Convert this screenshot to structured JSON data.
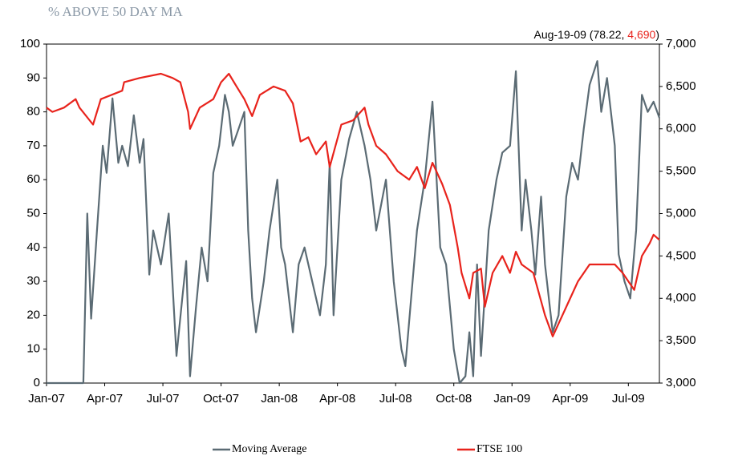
{
  "chart_data": {
    "type": "line",
    "title": "% ABOVE 50 DAY MA",
    "annotation": {
      "prefix": "Aug-19-09 (78.22, ",
      "highlight": "4,690",
      "suffix": ")"
    },
    "xlim": [
      0,
      31.6
    ],
    "xticks": [
      {
        "value": 0,
        "label": "Jan-07"
      },
      {
        "value": 3,
        "label": "Apr-07"
      },
      {
        "value": 6,
        "label": "Jul-07"
      },
      {
        "value": 9,
        "label": "Oct-07"
      },
      {
        "value": 12,
        "label": "Jan-08"
      },
      {
        "value": 15,
        "label": "Apr-08"
      },
      {
        "value": 18,
        "label": "Jul-08"
      },
      {
        "value": 21,
        "label": "Oct-08"
      },
      {
        "value": 24,
        "label": "Jan-09"
      },
      {
        "value": 27,
        "label": "Apr-09"
      },
      {
        "value": 30,
        "label": "Jul-09"
      }
    ],
    "ylim": [
      0,
      100
    ],
    "yticks": [
      0,
      10,
      20,
      30,
      40,
      50,
      60,
      70,
      80,
      90,
      100
    ],
    "y2lim": [
      3000,
      7000
    ],
    "y2ticks": [
      {
        "value": 3000,
        "label": "3,000"
      },
      {
        "value": 3500,
        "label": "3,500"
      },
      {
        "value": 4000,
        "label": "4,000"
      },
      {
        "value": 4500,
        "label": "4,500"
      },
      {
        "value": 5000,
        "label": "5,000"
      },
      {
        "value": 5500,
        "label": "5,500"
      },
      {
        "value": 6000,
        "label": "6,000"
      },
      {
        "value": 6500,
        "label": "6,500"
      },
      {
        "value": 7000,
        "label": "7,000"
      }
    ],
    "series": [
      {
        "name": "Moving Average",
        "color": "#5b6b74",
        "axis": "y",
        "x": [
          0,
          1.9,
          2.1,
          2.3,
          2.6,
          2.9,
          3.1,
          3.4,
          3.7,
          3.9,
          4.2,
          4.5,
          4.8,
          5.0,
          5.3,
          5.5,
          5.9,
          6.3,
          6.7,
          7.0,
          7.2,
          7.4,
          7.7,
          8.0,
          8.3,
          8.6,
          8.9,
          9.2,
          9.4,
          9.6,
          9.9,
          10.2,
          10.4,
          10.6,
          10.8,
          11.2,
          11.5,
          11.9,
          12.1,
          12.3,
          12.7,
          13.0,
          13.3,
          13.7,
          14.1,
          14.4,
          14.6,
          14.8,
          15.2,
          15.6,
          16.0,
          16.4,
          16.7,
          17.0,
          17.5,
          17.9,
          18.3,
          18.5,
          18.8,
          19.1,
          19.5,
          19.9,
          20.3,
          20.6,
          21.0,
          21.3,
          21.6,
          21.8,
          22.0,
          22.2,
          22.4,
          22.8,
          23.2,
          23.5,
          23.9,
          24.2,
          24.5,
          24.7,
          25.0,
          25.2,
          25.5,
          25.7,
          26.1,
          26.4,
          26.8,
          27.1,
          27.4,
          27.7,
          28.0,
          28.4,
          28.6,
          28.9,
          29.3,
          29.5,
          29.8,
          30.1,
          30.4,
          30.7,
          31.0,
          31.3,
          31.6
        ],
        "values": [
          0,
          0,
          50,
          19,
          45,
          70,
          62,
          84,
          65,
          70,
          64,
          79,
          65,
          72,
          32,
          45,
          35,
          50,
          8,
          25,
          36,
          2,
          22,
          40,
          30,
          62,
          70,
          85,
          80,
          70,
          75,
          80,
          45,
          25,
          15,
          30,
          45,
          60,
          40,
          35,
          15,
          35,
          40,
          30,
          20,
          35,
          65,
          20,
          60,
          72,
          80,
          70,
          60,
          45,
          60,
          30,
          10,
          5,
          25,
          45,
          60,
          83,
          40,
          35,
          10,
          0,
          2,
          15,
          2,
          35,
          8,
          45,
          60,
          68,
          70,
          92,
          45,
          60,
          45,
          32,
          55,
          35,
          15,
          20,
          55,
          65,
          60,
          75,
          88,
          95,
          80,
          90,
          70,
          38,
          30,
          25,
          45,
          85,
          80,
          83,
          78.22
        ]
      },
      {
        "name": "FTSE 100",
        "color": "#e8231c",
        "axis": "y2",
        "x": [
          0,
          0.3,
          0.9,
          1.5,
          1.7,
          2.4,
          2.8,
          3.9,
          4.0,
          4.8,
          5.9,
          6.5,
          6.9,
          7.3,
          7.4,
          7.9,
          8.6,
          9.0,
          9.4,
          9.8,
          10.2,
          10.6,
          11.0,
          11.7,
          12.3,
          12.7,
          13.1,
          13.5,
          13.9,
          14.4,
          14.6,
          15.2,
          15.8,
          16.4,
          16.6,
          17.0,
          17.5,
          18.1,
          18.7,
          19.1,
          19.5,
          19.9,
          20.4,
          20.8,
          21.2,
          21.4,
          21.8,
          22.0,
          22.4,
          22.6,
          23.0,
          23.5,
          23.9,
          24.2,
          24.5,
          25.1,
          25.7,
          26.1,
          26.6,
          26.9,
          27.4,
          28.0,
          28.6,
          29.3,
          29.7,
          30.3,
          30.7,
          31.1,
          31.3,
          31.6
        ],
        "values": [
          6250,
          6200,
          6250,
          6350,
          6250,
          6050,
          6350,
          6450,
          6550,
          6600,
          6650,
          6600,
          6550,
          6200,
          6000,
          6250,
          6350,
          6550,
          6650,
          6500,
          6350,
          6150,
          6400,
          6500,
          6450,
          6300,
          5850,
          5900,
          5700,
          5850,
          5550,
          6050,
          6100,
          6250,
          6050,
          5800,
          5700,
          5500,
          5400,
          5550,
          5300,
          5600,
          5350,
          5100,
          4600,
          4300,
          4000,
          4300,
          4350,
          3900,
          4300,
          4500,
          4300,
          4550,
          4400,
          4300,
          3800,
          3550,
          3800,
          3950,
          4200,
          4400,
          4400,
          4400,
          4300,
          4100,
          4500,
          4650,
          4750,
          4690
        ]
      }
    ]
  }
}
